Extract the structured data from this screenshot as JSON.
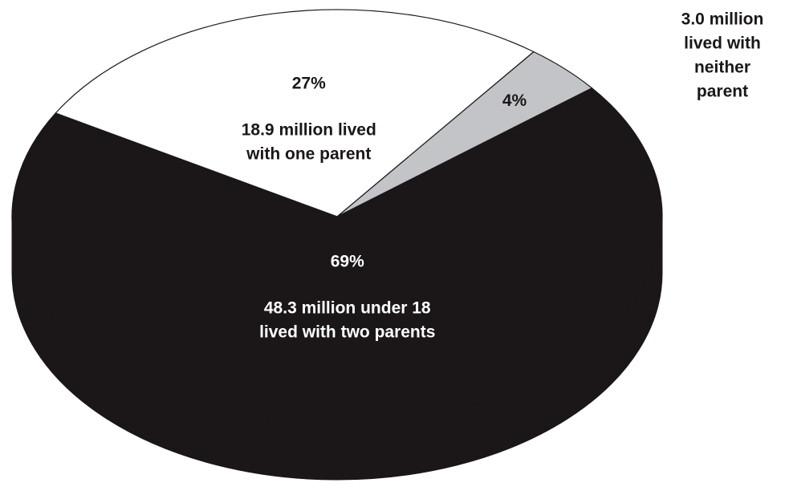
{
  "chart_data": {
    "type": "pie",
    "style": "3d",
    "slices": [
      {
        "label_lines": [
          "48.3 million under 18",
          "lived with two parents"
        ],
        "value": 69,
        "percent_label": "69%",
        "color": "#1b1718",
        "side_color": "#1b1718",
        "text_color": "#ffffff"
      },
      {
        "label_lines": [
          "3.0 million",
          "lived with",
          "neither",
          "parent"
        ],
        "value": 4,
        "percent_label": "4%",
        "color": "#c2c4c7",
        "side_color": "#8b9095",
        "text_color": "#1b1718"
      },
      {
        "label_lines": [
          "18.9 million lived",
          "with one parent"
        ],
        "value": 27,
        "percent_label": "27%",
        "color": "#ffffff",
        "side_color": "#8b9095",
        "text_color": "#1b1718"
      }
    ]
  }
}
